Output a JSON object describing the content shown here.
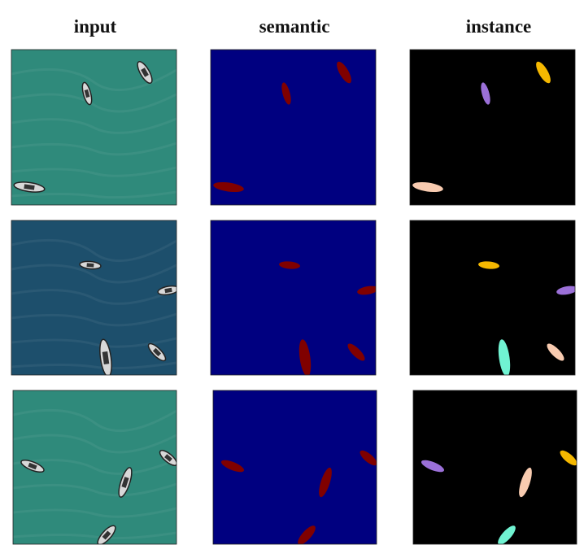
{
  "columns": [
    "input",
    "semantic",
    "instance"
  ]
}
